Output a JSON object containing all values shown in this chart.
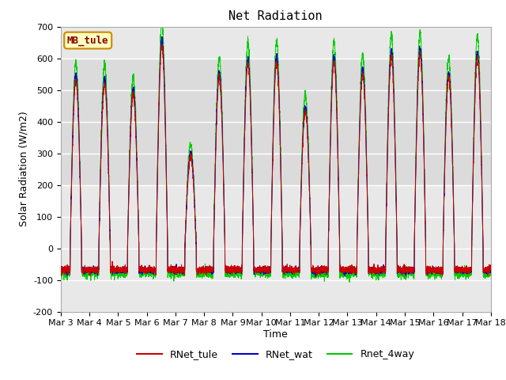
{
  "title": "Net Radiation",
  "xlabel": "Time",
  "ylabel": "Solar Radiation (W/m2)",
  "ylim": [
    -200,
    700
  ],
  "yticks": [
    -200,
    -100,
    0,
    100,
    200,
    300,
    400,
    500,
    600,
    700
  ],
  "xtick_labels": [
    "Mar 3",
    "Mar 4",
    "Mar 5",
    "Mar 6",
    "Mar 7",
    "Mar 8",
    "Mar 9",
    "Mar 10",
    "Mar 11",
    "Mar 12",
    "Mar 13",
    "Mar 14",
    "Mar 15",
    "Mar 16",
    "Mar 17",
    "Mar 18"
  ],
  "site_label": "MB_tule",
  "legend_entries": [
    {
      "label": "RNet_tule",
      "color": "#cc0000"
    },
    {
      "label": "RNet_wat",
      "color": "#0000cc"
    },
    {
      "label": "Rnet_4way",
      "color": "#00cc00"
    }
  ],
  "fig_bg_color": "#ffffff",
  "plot_bg_color": "#e8e8e8",
  "grid_color": "#ffffff",
  "shaded_band_low": 200,
  "shaded_band_high": 600,
  "shaded_band_color": "#d0d0d0",
  "title_fontsize": 11,
  "label_fontsize": 9,
  "tick_fontsize": 8,
  "n_days": 15,
  "points_per_day": 288,
  "day_peaks": [
    545,
    535,
    500,
    660,
    300,
    555,
    600,
    605,
    445,
    605,
    565,
    625,
    630,
    555,
    620
  ],
  "rnet_tule_color": "#cc0000",
  "rnet_wat_color": "#0000cc",
  "rnet_4way_color": "#00cc00"
}
